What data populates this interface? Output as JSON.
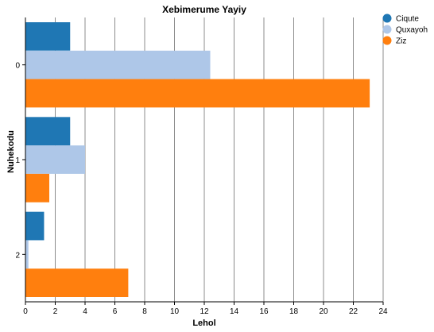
{
  "chart_data": {
    "type": "bar",
    "orientation": "horizontal",
    "title": "Xebimerume Yayiy",
    "xlabel": "Lehol",
    "ylabel": "Nuhekodu",
    "categories": [
      "0",
      "1",
      "2"
    ],
    "series": [
      {
        "name": "Ciqute",
        "color": "#1f77b4",
        "values": [
          3.0,
          3.0,
          1.25
        ]
      },
      {
        "name": "Quxayoh",
        "color": "#aec7e8",
        "values": [
          12.4,
          4.0,
          0.2
        ]
      },
      {
        "name": "Ziz",
        "color": "#ff7f0e",
        "values": [
          23.1,
          1.6,
          6.9
        ]
      }
    ],
    "xlim": [
      0,
      24
    ],
    "xticks": [
      "0",
      "2",
      "4",
      "6",
      "8",
      "10",
      "12",
      "14",
      "16",
      "18",
      "20",
      "22",
      "24"
    ],
    "grid": "vertical",
    "legend": "top-right"
  }
}
